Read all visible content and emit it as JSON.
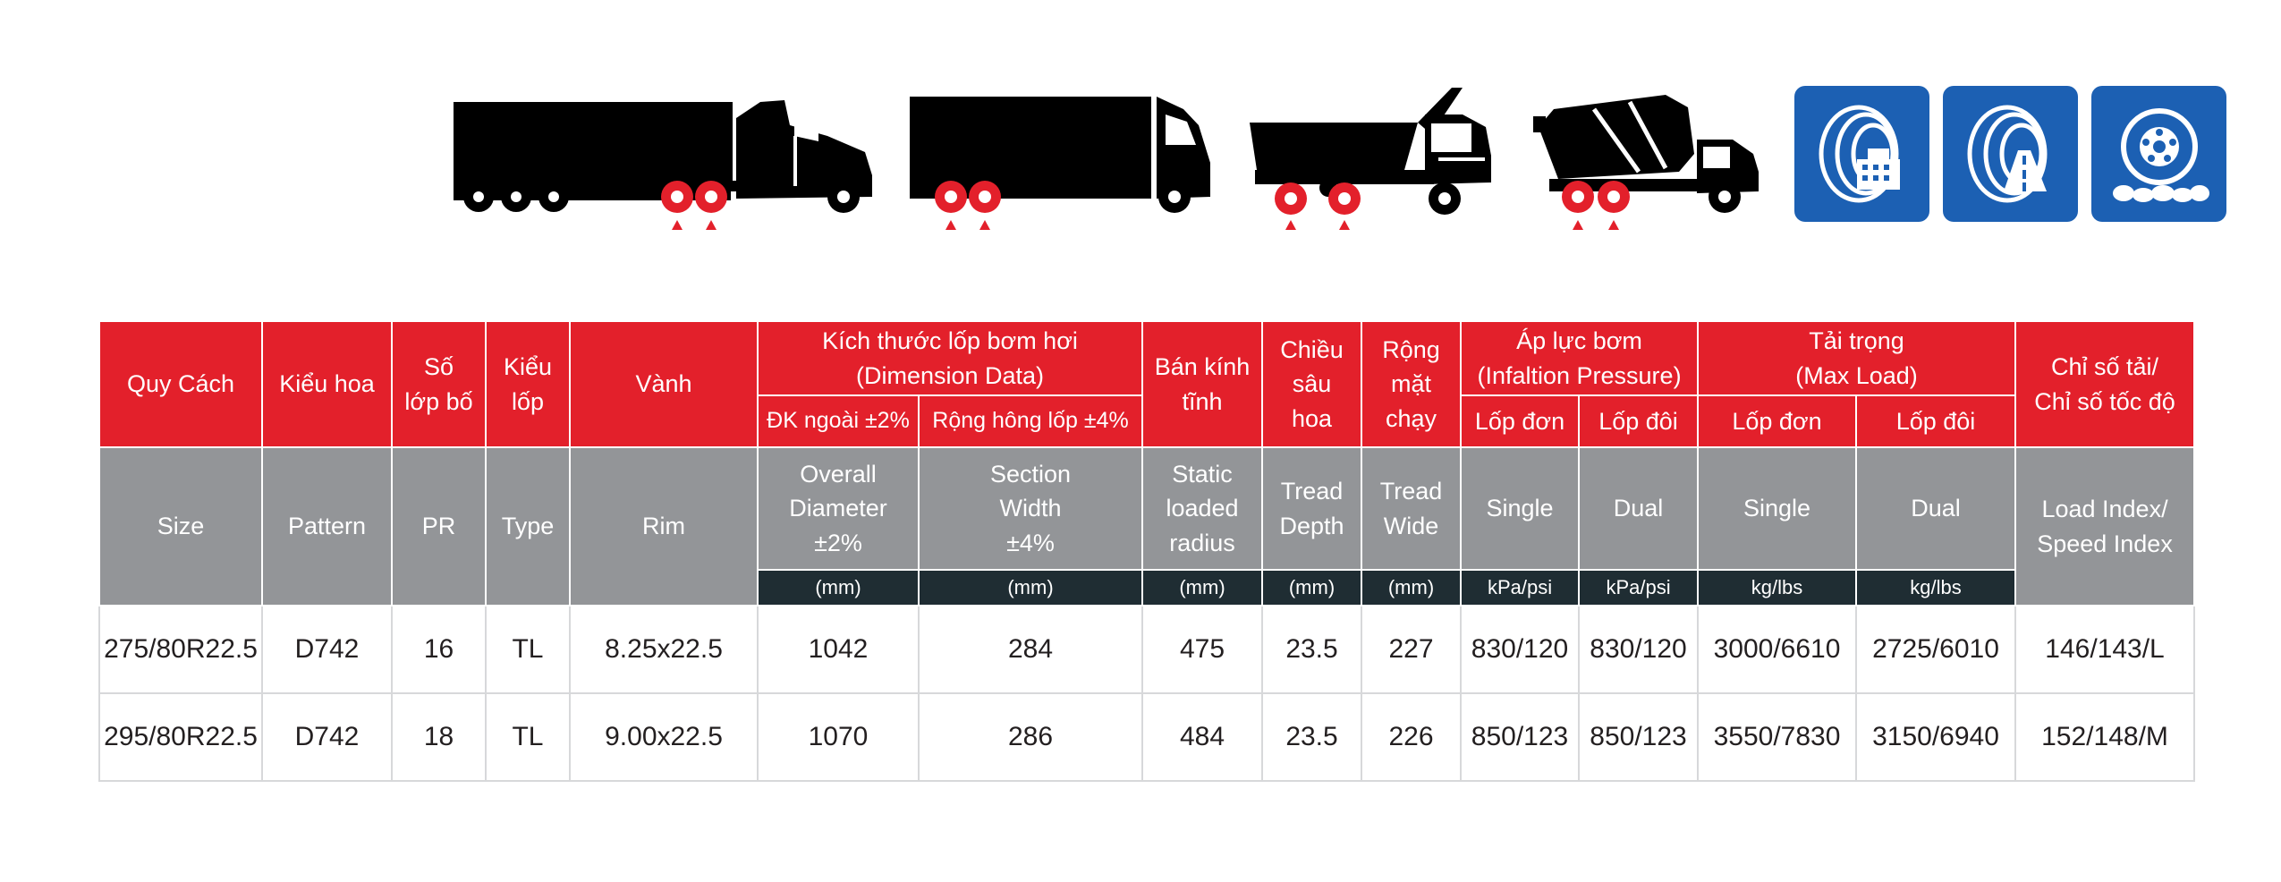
{
  "vehicles": [
    {
      "name": "semi-truck-trailer",
      "icon": "semi-truck-icon"
    },
    {
      "name": "box-truck",
      "icon": "box-truck-icon"
    },
    {
      "name": "dump-truck",
      "icon": "dump-truck-icon"
    },
    {
      "name": "concrete-mixer-truck",
      "icon": "mixer-truck-icon"
    }
  ],
  "application_icons": [
    "urban-road-tire-icon",
    "highway-tire-icon",
    "offroad-tire-icon"
  ],
  "colors": {
    "header_red": "#e3202b",
    "header_gray": "#939598",
    "unit_dark": "#1f2d33",
    "tile_blue": "#1c60b3",
    "marker_red": "#e3202b"
  },
  "header_vi": {
    "size": "Quy Cách",
    "pattern": "Kiểu hoa",
    "pr": "Số\nlớp bố",
    "type": "Kiểu\nlốp",
    "rim": "Vành",
    "dimension": "Kích thước lốp bơm hơi\n(Dimension Data)",
    "overall_diameter": "ĐK ngoài ±2%",
    "section_width": "Rộng hông lốp ±4%",
    "static_radius": "Bán kính\ntĩnh",
    "tread_depth": "Chiều\nsâu\nhoa",
    "tread_wide": "Rộng\nmặt\nchạy",
    "pressure": "Áp lực bơm\n(Infaltion Pressure)",
    "pressure_single": "Lốp đơn",
    "pressure_dual": "Lốp đôi",
    "load": "Tải trọng\n(Max Load)",
    "load_single": "Lốp đơn",
    "load_dual": "Lốp đôi",
    "index": "Chỉ số tải/\nChỉ số tốc độ"
  },
  "header_en": {
    "size": "Size",
    "pattern": "Pattern",
    "pr": "PR",
    "type": "Type",
    "rim": "Rim",
    "overall_diameter": "Overall\nDiameter\n±2%",
    "section_width": "Section\nWidth\n±4%",
    "static_radius": "Static\nloaded\nradius",
    "tread_depth": "Tread\nDepth",
    "tread_wide": "Tread\nWide",
    "pressure_single": "Single",
    "pressure_dual": "Dual",
    "load_single": "Single",
    "load_dual": "Dual",
    "index": "Load Index/\nSpeed Index"
  },
  "units": {
    "overall_diameter": "(mm)",
    "section_width": "(mm)",
    "static_radius": "(mm)",
    "tread_depth": "(mm)",
    "tread_wide": "(mm)",
    "pressure_single": "kPa/psi",
    "pressure_dual": "kPa/psi",
    "load_single": "kg/lbs",
    "load_dual": "kg/lbs"
  },
  "rows": [
    {
      "size": "275/80R22.5",
      "pattern": "D742",
      "pr": "16",
      "type": "TL",
      "rim": "8.25x22.5",
      "overall_diameter": "1042",
      "section_width": "284",
      "static_radius": "475",
      "tread_depth": "23.5",
      "tread_wide": "227",
      "pressure_single": "830/120",
      "pressure_dual": "830/120",
      "load_single": "3000/6610",
      "load_dual": "2725/6010",
      "index": "146/143/L"
    },
    {
      "size": "295/80R22.5",
      "pattern": "D742",
      "pr": "18",
      "type": "TL",
      "rim": "9.00x22.5",
      "overall_diameter": "1070",
      "section_width": "286",
      "static_radius": "484",
      "tread_depth": "23.5",
      "tread_wide": "226",
      "pressure_single": "850/123",
      "pressure_dual": "850/123",
      "load_single": "3550/7830",
      "load_dual": "3150/6940",
      "index": "152/148/M"
    }
  ]
}
